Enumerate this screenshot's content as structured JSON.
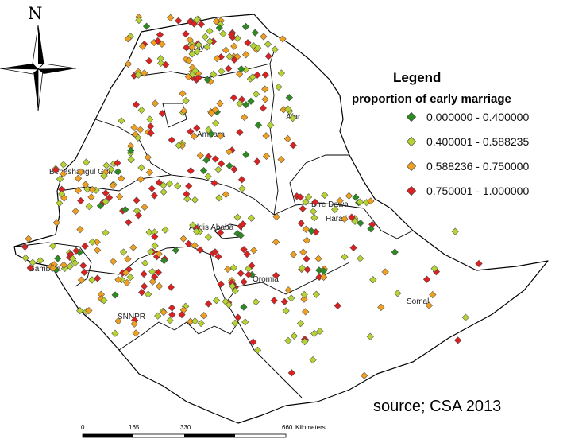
{
  "north_label": "N",
  "legend": {
    "title": "Legend",
    "subtitle": "proportion of early marriage",
    "items": [
      {
        "label": "0.000000 - 0.400000",
        "color": "#2e8b22"
      },
      {
        "label": "0.400001 - 0.588235",
        "color": "#b5d334"
      },
      {
        "label": "0.588236 - 0.750000",
        "color": "#f0a020"
      },
      {
        "label": "0.750001 - 1.000000",
        "color": "#dd2020"
      }
    ]
  },
  "regions": [
    "Tigray",
    "Afar",
    "Amhara",
    "Beneshangul Gumu",
    "Dire Dawa",
    "Harari",
    "Addis Ababa",
    "Gambela",
    "Oromia",
    "SNNPR",
    "Somali"
  ],
  "scale_bar": {
    "ticks": [
      "0",
      "165",
      "330",
      "660"
    ],
    "unit": "Kilometers"
  },
  "source": "source; CSA 2013"
}
